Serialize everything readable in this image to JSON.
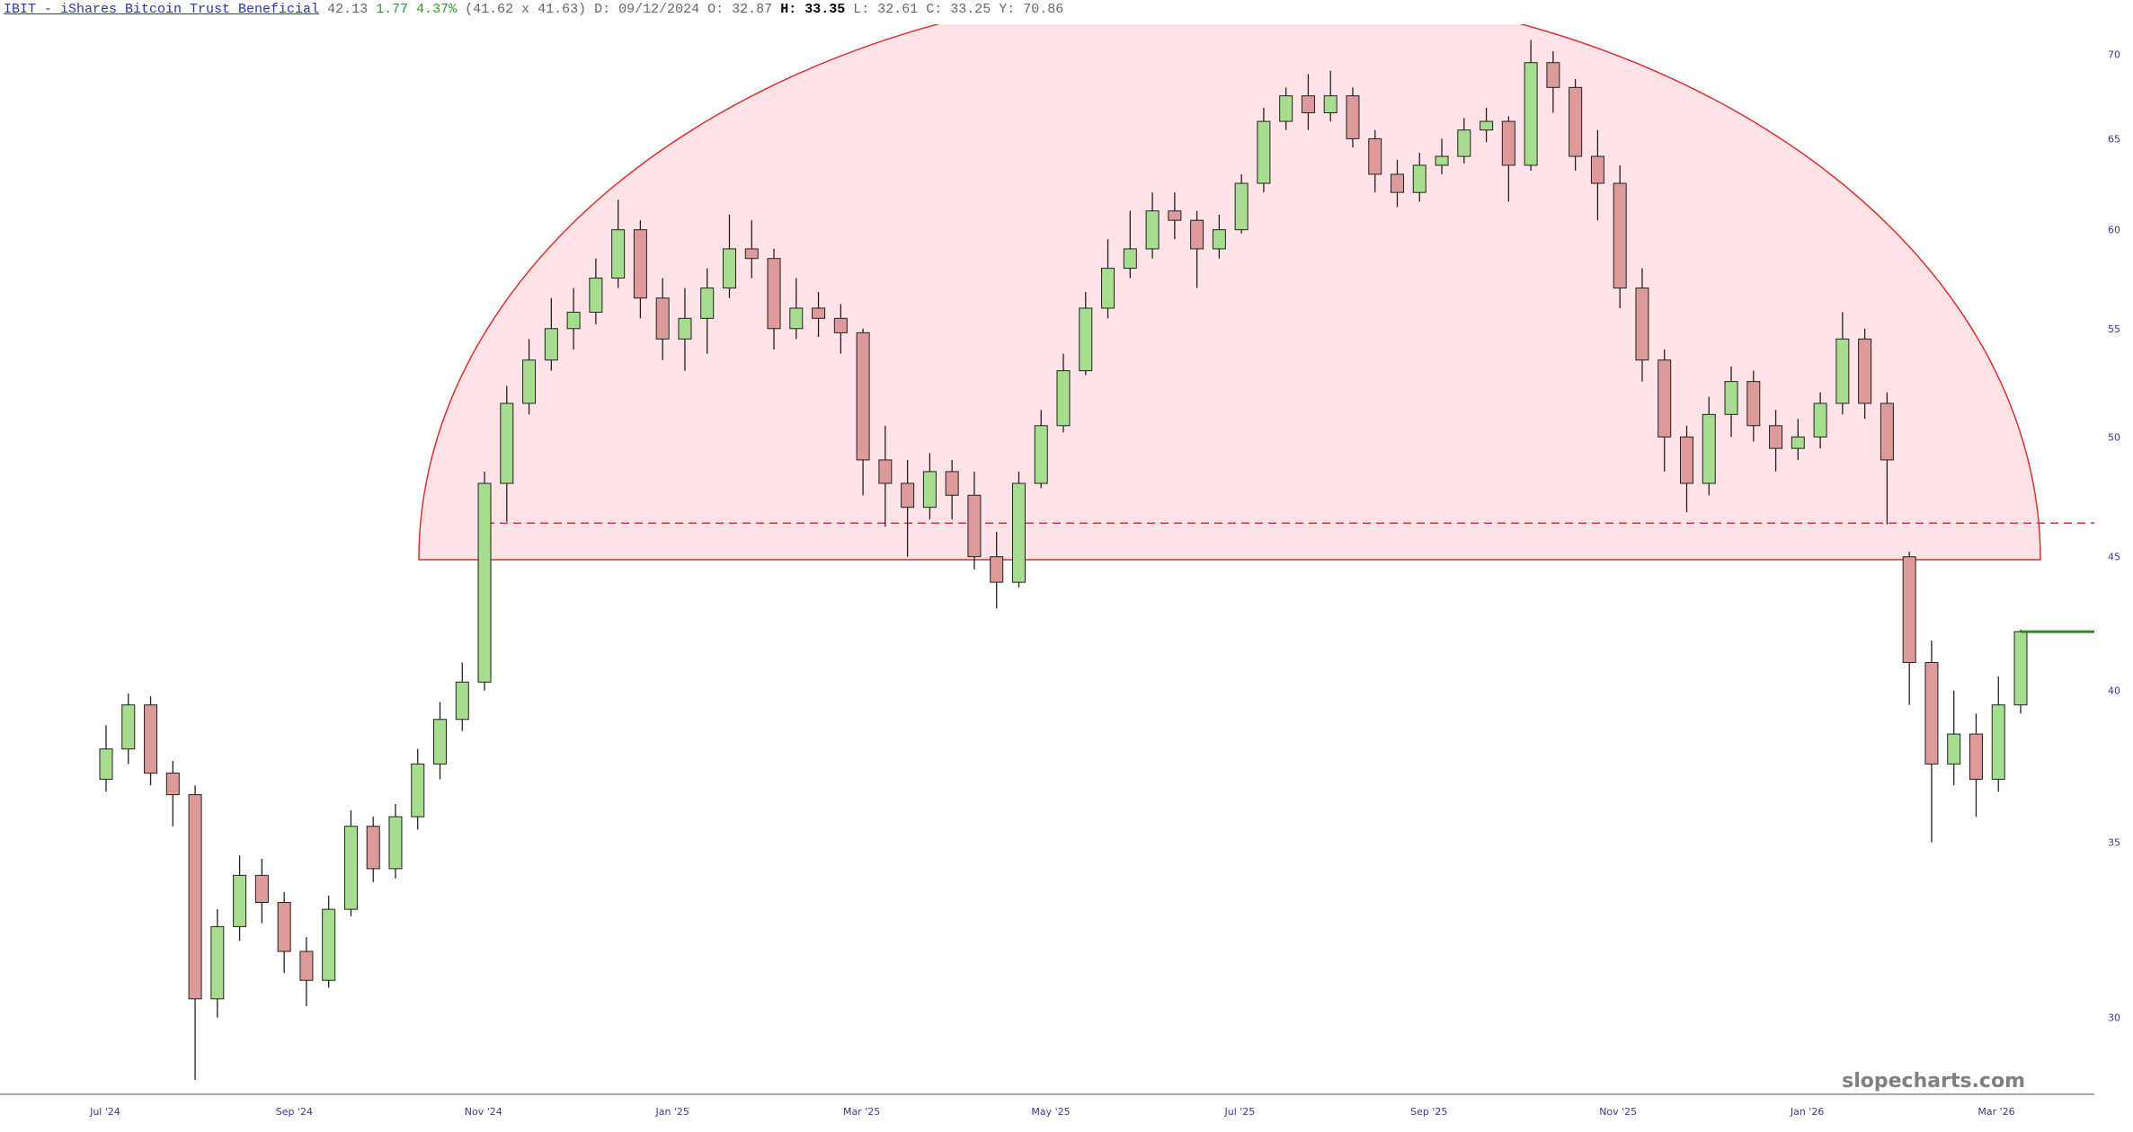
{
  "header": {
    "title": "IBIT - iShares Bitcoin Trust Beneficial",
    "last": 42.13,
    "change": 1.77,
    "change_pct": "4.37%",
    "bid_ask": "(41.62 x 41.63)",
    "date": "D: 09/12/2024",
    "open": "O: 32.87",
    "high": "H: 33.35",
    "low": "L: 32.61",
    "close": "C: 33.25",
    "year_high": "Y: 70.86"
  },
  "chart_data": {
    "type": "candlestick",
    "log_scale": true,
    "ylim": [
      28,
      72
    ],
    "yticks": [
      30,
      35,
      40,
      45,
      50,
      55,
      60,
      65,
      70
    ],
    "x_labels": [
      "Jul '24",
      "Sep '24",
      "Nov '24",
      "Jan '25",
      "Mar '25",
      "May '25",
      "Jul '25",
      "Sep '25",
      "Nov '25",
      "Jan '26",
      "Mar '26"
    ],
    "up_color": "#a6dd8e",
    "down_color": "#dc9a9a",
    "support_level": 46.35,
    "last_price_color": "#2e8b20",
    "open": [
      37.0,
      38.0,
      39.5,
      37.2,
      36.5,
      30.5,
      32.5,
      34.0,
      33.2,
      31.8,
      31.0,
      33.0,
      35.5,
      34.2,
      35.8,
      37.5,
      39.0,
      40.3,
      48.0,
      51.5,
      53.5,
      55.0,
      55.8,
      57.5,
      60.0,
      56.5,
      54.5,
      55.5,
      57.0,
      59.0,
      58.5,
      55.0,
      56.0,
      55.5,
      54.8,
      49.0,
      48.0,
      47.0,
      48.5,
      47.5,
      45.0,
      44.0,
      48.0,
      50.5,
      53.0,
      56.0,
      58.0,
      59.0,
      61.0,
      60.5,
      59.0,
      60.0,
      62.5,
      66.0,
      67.5,
      66.5,
      67.5,
      65.0,
      63.0,
      62.0,
      63.5,
      64.0,
      65.5,
      66.0,
      63.5,
      69.5,
      68.0,
      64.0,
      62.5,
      57.0,
      53.5,
      50.0,
      48.0,
      51.0,
      52.5,
      50.5,
      49.5,
      50.0,
      51.5,
      54.5,
      51.5,
      45.0,
      41.0,
      37.5,
      38.5,
      37.0,
      39.5
    ],
    "high": [
      38.8,
      39.9,
      39.8,
      37.6,
      36.8,
      33.0,
      34.6,
      34.5,
      33.5,
      32.2,
      33.4,
      36.0,
      35.8,
      36.2,
      38.0,
      39.6,
      41.0,
      48.5,
      52.3,
      54.5,
      56.5,
      57.0,
      58.5,
      61.6,
      60.5,
      57.5,
      57.0,
      58.0,
      60.8,
      60.5,
      59.0,
      57.5,
      56.8,
      56.2,
      55.0,
      50.5,
      49.0,
      49.3,
      49.0,
      48.5,
      46.0,
      48.5,
      51.2,
      53.8,
      56.8,
      59.5,
      61.0,
      62.0,
      62.0,
      61.0,
      60.8,
      63.0,
      66.8,
      68.0,
      68.8,
      69.0,
      68.0,
      65.5,
      63.8,
      64.2,
      65.0,
      66.2,
      66.8,
      66.3,
      70.9,
      70.2,
      68.5,
      65.5,
      63.5,
      58.0,
      54.0,
      50.5,
      51.8,
      53.2,
      53.0,
      51.2,
      50.8,
      52.0,
      55.8,
      55.0,
      52.0,
      45.2,
      41.8,
      40.0,
      39.2,
      40.5,
      42.2
    ],
    "low": [
      36.6,
      37.5,
      36.8,
      35.5,
      28.4,
      30.0,
      32.1,
      32.6,
      31.2,
      30.3,
      30.8,
      32.8,
      33.8,
      33.9,
      35.4,
      37.0,
      38.6,
      40.0,
      46.4,
      51.0,
      53.0,
      54.0,
      55.2,
      57.0,
      55.5,
      53.5,
      53.0,
      53.8,
      56.5,
      57.5,
      54.0,
      54.5,
      54.6,
      53.8,
      47.5,
      46.2,
      45.0,
      46.5,
      46.5,
      44.5,
      43.0,
      43.8,
      47.8,
      50.2,
      52.8,
      55.5,
      57.5,
      58.5,
      59.5,
      57.0,
      58.5,
      59.8,
      62.0,
      65.5,
      65.5,
      66.0,
      64.5,
      62.0,
      61.2,
      61.5,
      63.0,
      63.6,
      64.8,
      61.5,
      63.2,
      66.5,
      63.2,
      60.5,
      56.0,
      52.5,
      48.5,
      46.8,
      47.5,
      50.0,
      49.8,
      48.5,
      49.0,
      49.5,
      51.0,
      50.8,
      46.3,
      39.5,
      35.0,
      36.8,
      35.8,
      36.6,
      39.2
    ],
    "close": [
      38.0,
      39.5,
      37.2,
      36.5,
      30.5,
      32.5,
      34.0,
      33.2,
      31.8,
      31.0,
      33.0,
      35.5,
      34.2,
      35.8,
      37.5,
      39.0,
      40.3,
      48.0,
      51.5,
      53.5,
      55.0,
      55.8,
      57.5,
      60.0,
      56.5,
      54.5,
      55.5,
      57.0,
      59.0,
      58.5,
      55.0,
      56.0,
      55.5,
      54.8,
      49.0,
      48.0,
      47.0,
      48.5,
      47.5,
      45.0,
      44.0,
      48.0,
      50.5,
      53.0,
      56.0,
      58.0,
      59.0,
      61.0,
      60.5,
      59.0,
      60.0,
      62.5,
      66.0,
      67.5,
      66.5,
      67.5,
      65.0,
      63.0,
      62.0,
      63.5,
      64.0,
      65.5,
      66.0,
      63.5,
      69.5,
      68.0,
      64.0,
      62.5,
      57.0,
      53.5,
      50.0,
      48.0,
      51.0,
      52.5,
      50.5,
      49.5,
      50.0,
      51.5,
      54.5,
      51.5,
      49.0,
      41.0,
      37.5,
      38.5,
      37.0,
      39.5,
      42.13
    ],
    "watermark": "slopecharts.com"
  }
}
